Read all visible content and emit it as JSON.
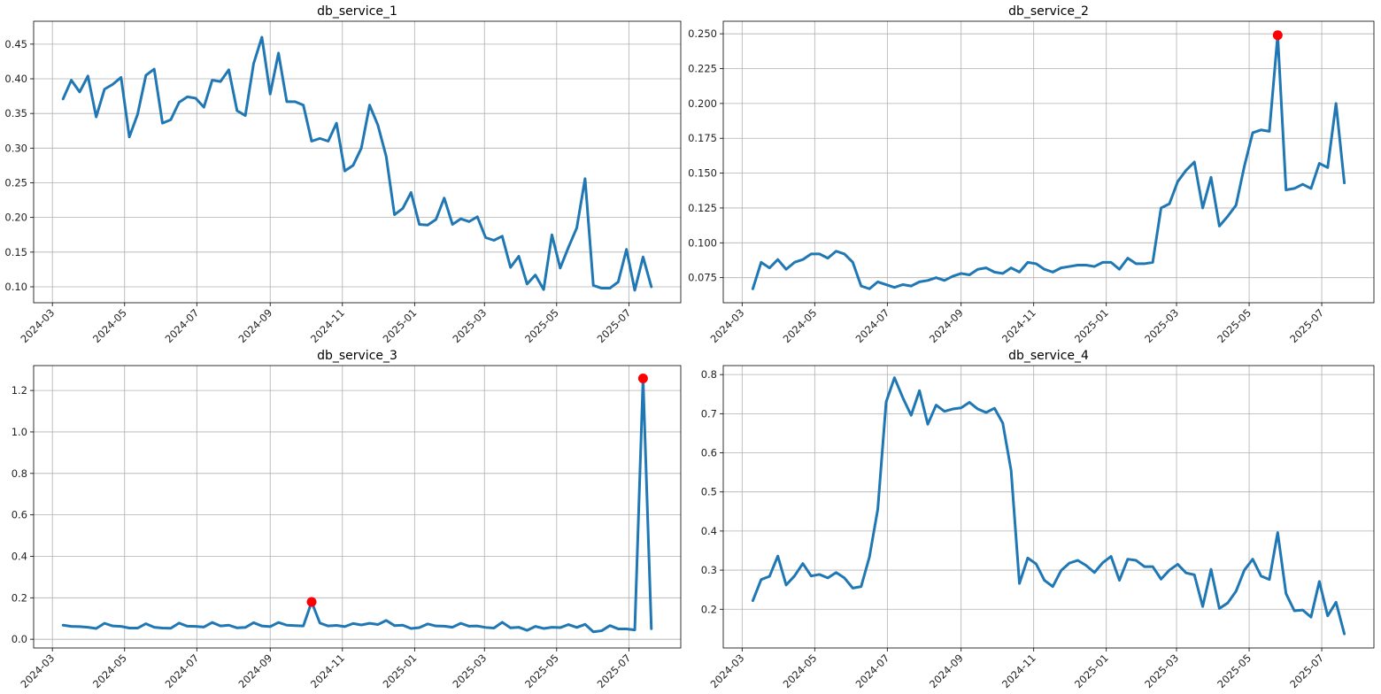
{
  "chart_data": [
    {
      "type": "line",
      "title": "db_service_1",
      "xlabel": "",
      "ylabel": "",
      "ylim": [
        0.077,
        0.483
      ],
      "x_ticks": [
        "2024-03",
        "2024-05",
        "2024-07",
        "2024-09",
        "2024-11",
        "2025-01",
        "2025-03",
        "2025-05",
        "2025-07"
      ],
      "y_ticks": [
        "0.10",
        "0.15",
        "0.20",
        "0.25",
        "0.30",
        "0.35",
        "0.40",
        "0.45"
      ],
      "y_tick_values": [
        0.1,
        0.15,
        0.2,
        0.25,
        0.3,
        0.35,
        0.4,
        0.45
      ],
      "grid": true,
      "line_color": "#1f77b4",
      "x_start": "2024-03-10",
      "x_step_days": 7,
      "values": [
        0.371,
        0.398,
        0.381,
        0.404,
        0.345,
        0.385,
        0.392,
        0.402,
        0.316,
        0.349,
        0.405,
        0.414,
        0.336,
        0.341,
        0.366,
        0.374,
        0.372,
        0.359,
        0.398,
        0.396,
        0.413,
        0.354,
        0.347,
        0.422,
        0.46,
        0.378,
        0.437,
        0.367,
        0.367,
        0.362,
        0.31,
        0.314,
        0.31,
        0.336,
        0.267,
        0.275,
        0.3,
        0.362,
        0.333,
        0.288,
        0.204,
        0.213,
        0.236,
        0.19,
        0.189,
        0.197,
        0.228,
        0.19,
        0.198,
        0.194,
        0.201,
        0.171,
        0.167,
        0.173,
        0.128,
        0.144,
        0.104,
        0.117,
        0.096,
        0.175,
        0.127,
        0.157,
        0.185,
        0.256,
        0.102,
        0.098,
        0.098,
        0.107,
        0.154,
        0.095,
        0.143,
        0.1
      ],
      "anomalies": []
    },
    {
      "type": "line",
      "title": "db_service_2",
      "xlabel": "",
      "ylabel": "",
      "ylim": [
        0.057,
        0.259
      ],
      "x_ticks": [
        "2024-03",
        "2024-05",
        "2024-07",
        "2024-09",
        "2024-11",
        "2025-01",
        "2025-03",
        "2025-05",
        "2025-07"
      ],
      "y_ticks": [
        "0.075",
        "0.100",
        "0.125",
        "0.150",
        "0.175",
        "0.200",
        "0.225",
        "0.250"
      ],
      "y_tick_values": [
        0.075,
        0.1,
        0.125,
        0.15,
        0.175,
        0.2,
        0.225,
        0.25
      ],
      "grid": true,
      "line_color": "#1f77b4",
      "x_start": "2024-03-10",
      "x_step_days": 7,
      "values": [
        0.067,
        0.086,
        0.082,
        0.088,
        0.081,
        0.086,
        0.088,
        0.092,
        0.092,
        0.089,
        0.094,
        0.092,
        0.086,
        0.069,
        0.067,
        0.072,
        0.07,
        0.068,
        0.07,
        0.069,
        0.072,
        0.073,
        0.075,
        0.073,
        0.076,
        0.078,
        0.077,
        0.081,
        0.082,
        0.079,
        0.078,
        0.082,
        0.079,
        0.086,
        0.085,
        0.081,
        0.079,
        0.082,
        0.083,
        0.084,
        0.084,
        0.083,
        0.086,
        0.086,
        0.081,
        0.089,
        0.085,
        0.085,
        0.086,
        0.125,
        0.128,
        0.144,
        0.152,
        0.158,
        0.125,
        0.147,
        0.112,
        0.119,
        0.127,
        0.155,
        0.179,
        0.181,
        0.18,
        0.249,
        0.138,
        0.139,
        0.142,
        0.139,
        0.157,
        0.154,
        0.2,
        0.143
      ],
      "anomalies": [
        {
          "index": 63,
          "value": 0.249
        }
      ]
    },
    {
      "type": "line",
      "title": "db_service_3",
      "xlabel": "",
      "ylabel": "",
      "ylim": [
        -0.042,
        1.32
      ],
      "x_ticks": [
        "2024-03",
        "2024-05",
        "2024-07",
        "2024-09",
        "2024-11",
        "2025-01",
        "2025-03",
        "2025-05",
        "2025-07"
      ],
      "y_ticks": [
        "0.0",
        "0.2",
        "0.4",
        "0.6",
        "0.8",
        "1.0",
        "1.2"
      ],
      "y_tick_values": [
        0.0,
        0.2,
        0.4,
        0.6,
        0.8,
        1.0,
        1.2
      ],
      "grid": true,
      "line_color": "#1f77b4",
      "x_start": "2024-03-10",
      "x_step_days": 7,
      "values": [
        0.068,
        0.062,
        0.061,
        0.058,
        0.052,
        0.077,
        0.064,
        0.062,
        0.054,
        0.054,
        0.075,
        0.058,
        0.054,
        0.053,
        0.078,
        0.063,
        0.062,
        0.059,
        0.081,
        0.064,
        0.068,
        0.055,
        0.057,
        0.08,
        0.064,
        0.061,
        0.081,
        0.068,
        0.066,
        0.064,
        0.18,
        0.078,
        0.064,
        0.067,
        0.061,
        0.076,
        0.069,
        0.077,
        0.071,
        0.091,
        0.066,
        0.068,
        0.052,
        0.056,
        0.074,
        0.064,
        0.063,
        0.058,
        0.077,
        0.063,
        0.064,
        0.057,
        0.054,
        0.082,
        0.055,
        0.058,
        0.043,
        0.062,
        0.052,
        0.058,
        0.056,
        0.071,
        0.057,
        0.072,
        0.036,
        0.041,
        0.066,
        0.05,
        0.05,
        0.045,
        1.258,
        0.051
      ],
      "anomalies": [
        {
          "index": 30,
          "value": 0.18
        },
        {
          "index": 70,
          "value": 1.258
        }
      ]
    },
    {
      "type": "line",
      "title": "db_service_4",
      "xlabel": "",
      "ylabel": "",
      "ylim": [
        0.101,
        0.823
      ],
      "x_ticks": [
        "2024-03",
        "2024-05",
        "2024-07",
        "2024-09",
        "2024-11",
        "2025-01",
        "2025-03",
        "2025-05",
        "2025-07"
      ],
      "y_ticks": [
        "0.2",
        "0.3",
        "0.4",
        "0.5",
        "0.6",
        "0.7",
        "0.8"
      ],
      "y_tick_values": [
        0.2,
        0.3,
        0.4,
        0.5,
        0.6,
        0.7,
        0.8
      ],
      "grid": true,
      "line_color": "#1f77b4",
      "x_start": "2024-03-10",
      "x_step_days": 7,
      "values": [
        0.222,
        0.276,
        0.284,
        0.336,
        0.262,
        0.285,
        0.317,
        0.285,
        0.289,
        0.28,
        0.294,
        0.28,
        0.254,
        0.258,
        0.334,
        0.456,
        0.73,
        0.792,
        0.741,
        0.696,
        0.759,
        0.673,
        0.722,
        0.706,
        0.712,
        0.715,
        0.729,
        0.712,
        0.703,
        0.714,
        0.676,
        0.555,
        0.266,
        0.331,
        0.316,
        0.274,
        0.258,
        0.299,
        0.318,
        0.325,
        0.312,
        0.294,
        0.319,
        0.335,
        0.274,
        0.328,
        0.325,
        0.309,
        0.309,
        0.277,
        0.3,
        0.315,
        0.293,
        0.288,
        0.207,
        0.302,
        0.202,
        0.216,
        0.246,
        0.3,
        0.328,
        0.285,
        0.276,
        0.396,
        0.24,
        0.196,
        0.198,
        0.18,
        0.271,
        0.183,
        0.218,
        0.137
      ],
      "anomalies": []
    }
  ]
}
